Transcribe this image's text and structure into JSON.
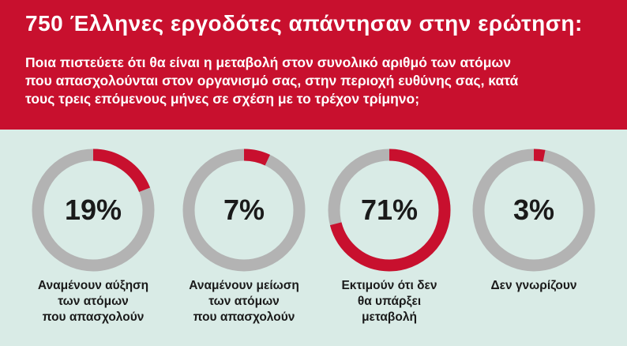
{
  "header": {
    "title": "750 Έλληνες εργοδότες απάντησαν στην ερώτηση:",
    "question_lines": [
      "Ποια πιστεύετε ότι θα είναι η μεταβολή στον συνολικό αριθμό των ατόμων",
      "που απασχολούνται στον οργανισμό σας, στην περιοχή ευθύνης σας, κατά",
      "τους τρεις επόμενους μήνες σε σχέση με το τρέχον τρίμηνο;"
    ]
  },
  "colors": {
    "accent": "#c8102e",
    "track": "#b3b3b3",
    "background": "#d9ebe6"
  },
  "chart_data": {
    "type": "pie",
    "charts": [
      {
        "value": 19,
        "value_label": "19%",
        "label_lines": [
          "Αναμένουν αύξηση",
          "των ατόμων",
          "που απασχολούν"
        ]
      },
      {
        "value": 7,
        "value_label": "7%",
        "label_lines": [
          "Αναμένουν μείωση",
          "των ατόμων",
          "που απασχολούν"
        ]
      },
      {
        "value": 71,
        "value_label": "71%",
        "label_lines": [
          "Εκτιμούν ότι δεν",
          "θα υπάρξει",
          "μεταβολή"
        ]
      },
      {
        "value": 3,
        "value_label": "3%",
        "label_lines": [
          "Δεν γνωρίζουν"
        ]
      }
    ]
  }
}
